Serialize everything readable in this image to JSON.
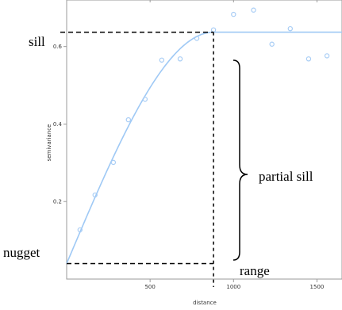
{
  "chart_data": {
    "type": "scatter",
    "title": "",
    "xlabel": "distance",
    "ylabel": "semivariance",
    "xlim": [
      0,
      1650
    ],
    "ylim": [
      0,
      0.72
    ],
    "x_ticks": [
      500,
      1000,
      1500
    ],
    "y_ticks": [
      0.2,
      0.4,
      0.6
    ],
    "grid": false,
    "legend": "none",
    "series": [
      {
        "type": "points",
        "x": [
          80,
          170,
          280,
          370,
          470,
          570,
          680,
          780,
          880,
          1000,
          1120,
          1230,
          1340,
          1450,
          1560
        ],
        "y": [
          0.127,
          0.217,
          0.301,
          0.411,
          0.464,
          0.565,
          0.568,
          0.621,
          0.643,
          0.683,
          0.694,
          0.606,
          0.646,
          0.568,
          0.576
        ]
      }
    ],
    "model": {
      "type": "spherical",
      "nugget": 0.04,
      "sill": 0.637,
      "range": 880
    },
    "annotations": {
      "sill": "sill",
      "nugget": "nugget",
      "range": "range",
      "partial_sill": "partial sill"
    },
    "colors": {
      "points": "#a8cdf5",
      "curve": "#9fc9f5",
      "frame": "#9a9a9a",
      "annotation": "#000000"
    }
  }
}
